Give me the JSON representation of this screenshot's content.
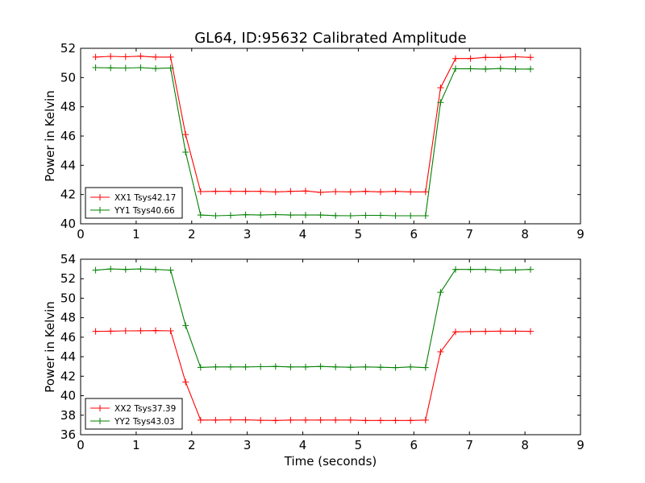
{
  "title": "GL64, ID:95632 Calibrated Amplitude",
  "chart_data": [
    {
      "type": "line",
      "ylabel": "Power in Kelvin",
      "xlabel": "",
      "xlim": [
        0,
        9
      ],
      "ylim": [
        40,
        52
      ],
      "xticks": [
        0,
        1,
        2,
        3,
        4,
        5,
        6,
        7,
        8,
        9
      ],
      "yticks": [
        40,
        42,
        44,
        46,
        48,
        50,
        52
      ],
      "grid": false,
      "legend_position": "lower-left",
      "x": [
        0.27,
        0.54,
        0.81,
        1.08,
        1.35,
        1.62,
        1.89,
        2.16,
        2.43,
        2.7,
        2.97,
        3.24,
        3.51,
        3.78,
        4.05,
        4.32,
        4.59,
        4.86,
        5.13,
        5.4,
        5.67,
        5.94,
        6.21,
        6.48,
        6.75,
        7.02,
        7.29,
        7.56,
        7.83,
        8.1
      ],
      "series": [
        {
          "name": "XX1 Tsys42.17",
          "color": "#ff0000",
          "values": [
            51.4,
            51.45,
            51.42,
            51.46,
            51.4,
            51.4,
            46.1,
            42.2,
            42.22,
            42.22,
            42.22,
            42.22,
            42.18,
            42.22,
            42.24,
            42.15,
            42.2,
            42.18,
            42.22,
            42.18,
            42.22,
            42.18,
            42.18,
            49.3,
            51.3,
            51.3,
            51.38,
            51.38,
            51.42,
            51.38
          ]
        },
        {
          "name": "YY1 Tsys40.66",
          "color": "#008000",
          "values": [
            50.68,
            50.66,
            50.65,
            50.68,
            50.62,
            50.65,
            44.9,
            40.6,
            40.55,
            40.58,
            40.62,
            40.6,
            40.63,
            40.6,
            40.6,
            40.6,
            40.56,
            40.55,
            40.58,
            40.58,
            40.55,
            40.55,
            40.55,
            48.3,
            50.6,
            50.6,
            50.58,
            50.62,
            50.58,
            50.58
          ]
        }
      ]
    },
    {
      "type": "line",
      "ylabel": "Power in Kelvin",
      "xlabel": "Time (seconds)",
      "xlim": [
        0,
        9
      ],
      "ylim": [
        36,
        54
      ],
      "xticks": [
        0,
        1,
        2,
        3,
        4,
        5,
        6,
        7,
        8,
        9
      ],
      "yticks": [
        36,
        38,
        40,
        42,
        44,
        46,
        48,
        50,
        52,
        54
      ],
      "grid": false,
      "legend_position": "lower-left",
      "x": [
        0.27,
        0.54,
        0.81,
        1.08,
        1.35,
        1.62,
        1.89,
        2.16,
        2.43,
        2.7,
        2.97,
        3.24,
        3.51,
        3.78,
        4.05,
        4.32,
        4.59,
        4.86,
        5.13,
        5.4,
        5.67,
        5.94,
        6.21,
        6.48,
        6.75,
        7.02,
        7.29,
        7.56,
        7.83,
        8.1
      ],
      "series": [
        {
          "name": "XX2 Tsys37.39",
          "color": "#ff0000",
          "values": [
            46.6,
            46.62,
            46.65,
            46.66,
            46.68,
            46.65,
            41.4,
            37.5,
            37.5,
            37.52,
            37.52,
            37.48,
            37.46,
            37.5,
            37.5,
            37.5,
            37.5,
            37.5,
            37.46,
            37.46,
            37.46,
            37.46,
            37.5,
            44.5,
            46.55,
            46.58,
            46.6,
            46.62,
            46.62,
            46.6
          ]
        },
        {
          "name": "YY2 Tsys43.03",
          "color": "#008000",
          "values": [
            52.88,
            53.0,
            52.95,
            53.0,
            52.95,
            52.88,
            47.2,
            42.9,
            42.95,
            42.95,
            42.95,
            42.98,
            43.0,
            42.95,
            42.95,
            43.0,
            42.95,
            42.92,
            42.95,
            42.92,
            42.88,
            42.95,
            42.88,
            50.6,
            52.95,
            52.95,
            52.95,
            52.88,
            52.9,
            52.95
          ]
        }
      ]
    }
  ]
}
